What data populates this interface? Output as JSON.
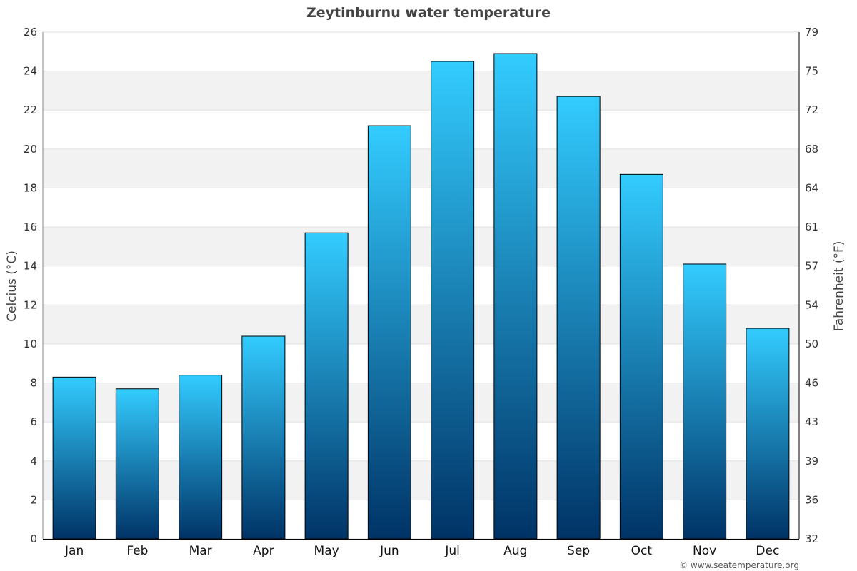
{
  "colors": {
    "bar_top": "#33CCFF",
    "bar_bottom": "#003366",
    "band": "#F2F2F2",
    "gridline": "#E0E0E0",
    "bar_outline": "#000000"
  },
  "credit": "© www.seatemperature.org",
  "chart_data": {
    "type": "bar",
    "title": "Zeytinburnu water temperature",
    "categories": [
      "Jan",
      "Feb",
      "Mar",
      "Apr",
      "May",
      "Jun",
      "Jul",
      "Aug",
      "Sep",
      "Oct",
      "Nov",
      "Dec"
    ],
    "values": [
      8.3,
      7.7,
      8.4,
      10.4,
      15.7,
      21.2,
      24.5,
      24.9,
      22.7,
      18.7,
      14.1,
      10.8
    ],
    "ylabel": "Celcius (°C)",
    "y2label": "Fahrenheit (°F)",
    "ylim": [
      0,
      26
    ],
    "yticks": [
      "0",
      "2",
      "4",
      "6",
      "8",
      "10",
      "12",
      "14",
      "16",
      "18",
      "20",
      "22",
      "24",
      "26"
    ],
    "y2ticks": [
      "32",
      "36",
      "39",
      "43",
      "46",
      "50",
      "54",
      "57",
      "61",
      "64",
      "68",
      "72",
      "75",
      "79"
    ],
    "grid": true,
    "legend": "none"
  }
}
